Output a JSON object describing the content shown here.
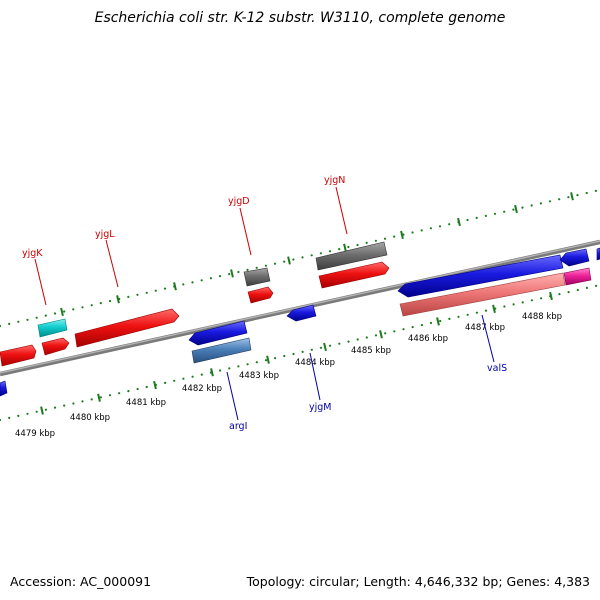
{
  "title": "Escherichia coli str. K-12 substr. W3110, complete genome",
  "footer": {
    "accession": "Accession: AC_000091",
    "summary": "Topology: circular; Length: 4,646,332 bp; Genes: 4,383"
  },
  "tick_labels": [
    "4479 kbp",
    "4480 kbp",
    "4481 kbp",
    "4482 kbp",
    "4483 kbp",
    "4484 kbp",
    "4485 kbp",
    "4486 kbp",
    "4487 kbp",
    "4488 kbp"
  ],
  "gene_labels": [
    {
      "name": "yjgK",
      "strand": "forward"
    },
    {
      "name": "yjgL",
      "strand": "forward"
    },
    {
      "name": "yjgD",
      "strand": "forward"
    },
    {
      "name": "yjgN",
      "strand": "forward"
    },
    {
      "name": "argI",
      "strand": "reverse"
    },
    {
      "name": "yjgM",
      "strand": "reverse"
    },
    {
      "name": "valS",
      "strand": "reverse"
    }
  ],
  "colors": {
    "forward_gene": "#ee1111",
    "reverse_gene": "#1a1ae0",
    "backbone": "#888888",
    "tick": "#1e7a1e",
    "label_forward": "#cc0000",
    "label_reverse": "#0000aa",
    "gray_feature": "#6e6e6e",
    "cyan_feature": "#11cccc",
    "steelblue_feature": "#4a7fb8",
    "salmon_feature": "#ee7777",
    "pink_feature": "#ee2299"
  }
}
